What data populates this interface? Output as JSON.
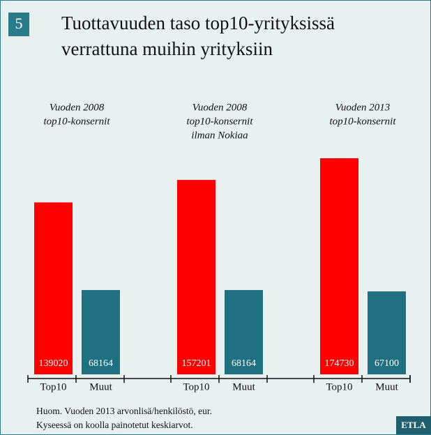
{
  "chart_data": {
    "type": "bar",
    "badge": "5",
    "title": [
      "Tuottavuuden taso top10-yrityksissä",
      "verrattuna muihin yrityksiin"
    ],
    "groups": [
      {
        "label": [
          "Vuoden 2008",
          "top10-konsernit"
        ],
        "categories": [
          "Top10",
          "Muut"
        ],
        "values": [
          139020,
          68164
        ]
      },
      {
        "label": [
          "Vuoden 2008",
          "top10-konsernit",
          "ilman Nokiaa"
        ],
        "categories": [
          "Top10",
          "Muut"
        ],
        "values": [
          157201,
          68164
        ]
      },
      {
        "label": [
          "Vuoden 2013",
          "top10-konsernit"
        ],
        "categories": [
          "Top10",
          "Muut"
        ],
        "values": [
          174730,
          67100
        ]
      }
    ],
    "colors": [
      "#ff0000",
      "#1f7080"
    ],
    "note": [
      "Huom. Vuoden 2013 arvonlisä/henkilöstö, eur.",
      "Kyseessä on koolla painotetut keskiarvot."
    ],
    "logo": "ETLA"
  }
}
